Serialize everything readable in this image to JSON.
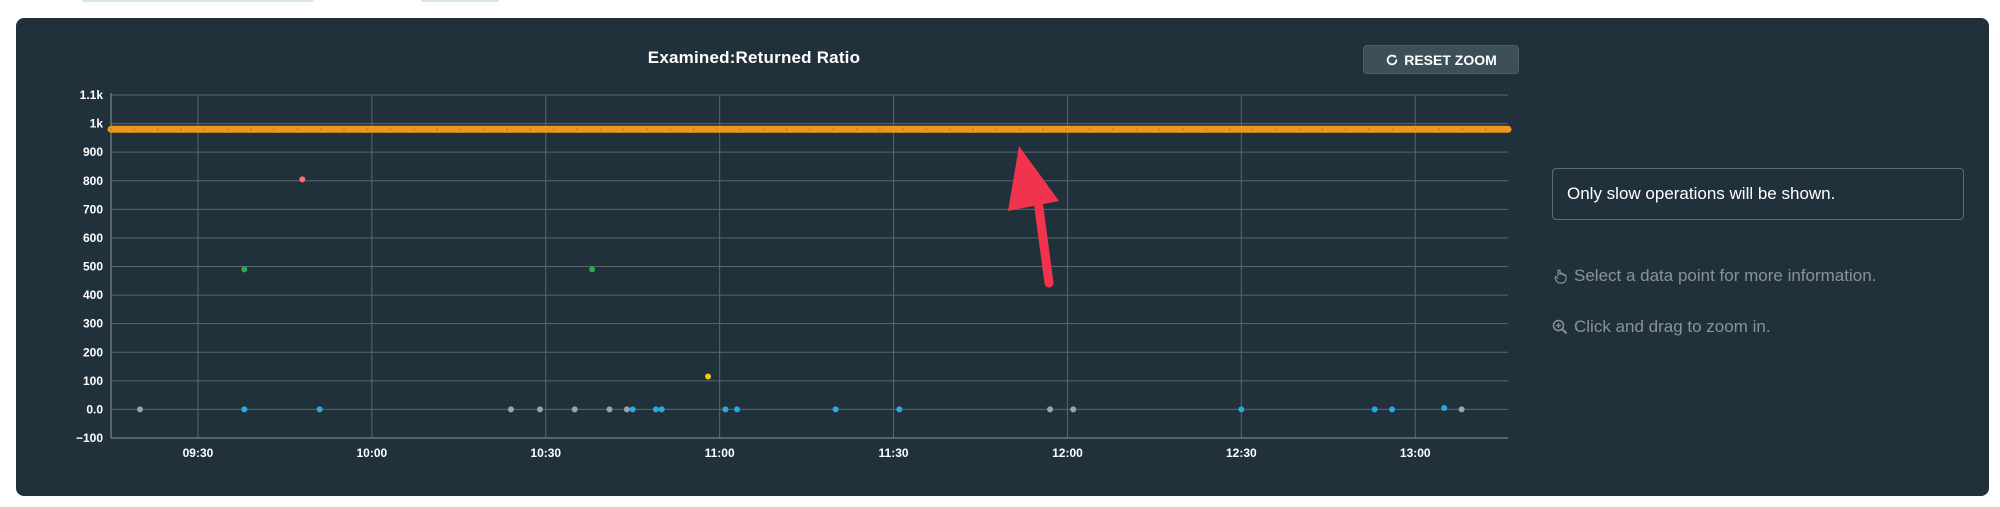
{
  "top_strip": {
    "pill_colors": [
      "#d6e6ef"
    ]
  },
  "panel": {
    "info_text": "Only slow operations will be shown.",
    "hint_select": "Select a data point for more information.",
    "hint_zoom": "Click and drag to zoom in.",
    "icons": {
      "reset": "refresh-icon",
      "select": "pointer-hand-icon",
      "zoom": "zoom-in-icon"
    }
  },
  "toolbar": {
    "reset_label": "RESET ZOOM"
  },
  "annotation": {
    "arrow_color": "#f2334d",
    "points_to": "series near 1k"
  },
  "chart_data": {
    "type": "scatter",
    "title": "Examined:Returned Ratio",
    "x_type": "time",
    "x_range": [
      "09:15",
      "13:16"
    ],
    "x_ticks": [
      "09:30",
      "10:00",
      "10:30",
      "11:00",
      "11:30",
      "12:00",
      "12:30",
      "13:00"
    ],
    "y_range": [
      -100,
      1100
    ],
    "y_ticks": [
      {
        "value": -100,
        "label": "−100"
      },
      {
        "value": 0,
        "label": "0.0"
      },
      {
        "value": 100,
        "label": "100"
      },
      {
        "value": 200,
        "label": "200"
      },
      {
        "value": 300,
        "label": "300"
      },
      {
        "value": 400,
        "label": "400"
      },
      {
        "value": 500,
        "label": "500"
      },
      {
        "value": 600,
        "label": "600"
      },
      {
        "value": 700,
        "label": "700"
      },
      {
        "value": 800,
        "label": "800"
      },
      {
        "value": 900,
        "label": "900"
      },
      {
        "value": 1000,
        "label": "1k"
      },
      {
        "value": 1100,
        "label": "1.1k"
      }
    ],
    "grid": true,
    "legend": "none",
    "series": [
      {
        "color": "#f0961e",
        "style": "dense-band",
        "y": 980,
        "x_start": "09:15",
        "x_end": "13:16"
      },
      {
        "color": "#ff6a6a",
        "points": [
          [
            "09:48",
            805
          ]
        ]
      },
      {
        "color": "#2fa84f",
        "points": [
          [
            "09:38",
            490
          ],
          [
            "10:38",
            490
          ]
        ]
      },
      {
        "color": "#f5c518",
        "points": [
          [
            "10:58",
            115
          ]
        ]
      },
      {
        "color": "#27a9e1",
        "points": [
          [
            "09:38",
            0
          ],
          [
            "09:51",
            0
          ],
          [
            "10:45",
            0
          ],
          [
            "10:49",
            0
          ],
          [
            "10:50",
            0
          ],
          [
            "11:01",
            0
          ],
          [
            "11:03",
            0
          ],
          [
            "11:20",
            0
          ],
          [
            "11:31",
            0
          ],
          [
            "12:30",
            0
          ],
          [
            "12:53",
            0
          ],
          [
            "12:56",
            0
          ],
          [
            "13:05",
            5
          ]
        ]
      },
      {
        "color": "#9aa4a9",
        "points": [
          [
            "09:20",
            0
          ],
          [
            "10:24",
            0
          ],
          [
            "10:29",
            0
          ],
          [
            "10:35",
            0
          ],
          [
            "10:41",
            0
          ],
          [
            "10:44",
            0
          ],
          [
            "11:57",
            0
          ],
          [
            "12:01",
            0
          ],
          [
            "13:08",
            0
          ]
        ]
      }
    ]
  }
}
